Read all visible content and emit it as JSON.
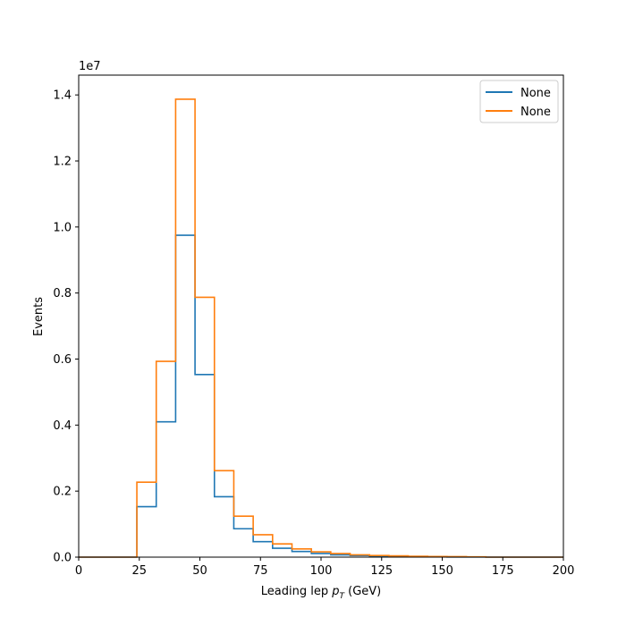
{
  "chart_data": {
    "type": "histogram",
    "xlabel": "Leading lep p_T (GeV)",
    "xlabel_main": "Leading lep ",
    "xlabel_sym": "p",
    "xlabel_sub": "T",
    "xlabel_unit": " (GeV)",
    "ylabel": "Events",
    "y_offset_text": "1e7",
    "y_scale": 10000000,
    "xlim": [
      0,
      200
    ],
    "ylim": [
      0,
      14600000
    ],
    "x_ticks": [
      0,
      25,
      50,
      75,
      100,
      125,
      150,
      175,
      200
    ],
    "x_tick_labels": [
      "0",
      "25",
      "50",
      "75",
      "100",
      "125",
      "150",
      "175",
      "200"
    ],
    "y_ticks": [
      0,
      2000000,
      4000000,
      6000000,
      8000000,
      10000000,
      12000000,
      14000000
    ],
    "y_tick_labels": [
      "0.0",
      "0.2",
      "0.4",
      "0.6",
      "0.8",
      "1.0",
      "1.2",
      "1.4"
    ],
    "bin_edges": [
      0,
      8,
      16,
      24,
      32,
      40,
      48,
      56,
      64,
      72,
      80,
      88,
      96,
      104,
      112,
      120,
      128,
      136,
      144,
      152,
      160,
      168,
      176,
      184,
      192,
      200
    ],
    "grid": false,
    "legend_position": "top-right",
    "series": [
      {
        "name": "None",
        "color": "#1f77b4",
        "values": [
          0,
          0,
          0,
          1530000,
          4100000,
          9750000,
          5530000,
          1830000,
          860000,
          470000,
          270000,
          170000,
          110000,
          70000,
          50000,
          30000,
          20000,
          10000,
          10000,
          5000,
          5000,
          0,
          0,
          0,
          0
        ]
      },
      {
        "name": "None",
        "color": "#ff7f0e",
        "values": [
          0,
          0,
          0,
          2270000,
          5930000,
          13870000,
          7870000,
          2620000,
          1240000,
          680000,
          400000,
          250000,
          160000,
          110000,
          70000,
          50000,
          40000,
          25000,
          20000,
          15000,
          10000,
          0,
          0,
          0,
          0
        ]
      }
    ]
  }
}
